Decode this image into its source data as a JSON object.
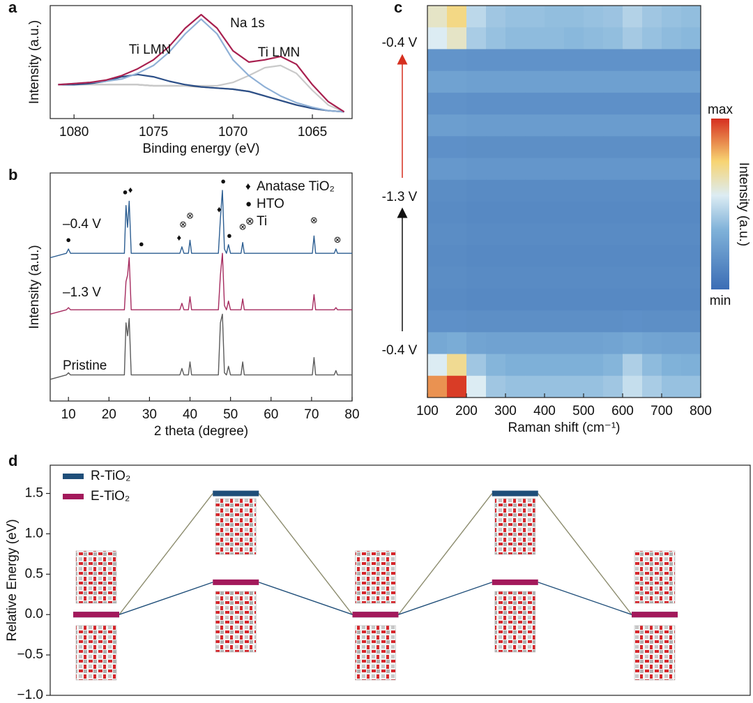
{
  "chart_data": [
    {
      "type": "line",
      "panel_label": "a",
      "xlabel": "Binding energy (eV)",
      "ylabel": "Intensity (a.u.)",
      "annotations": [
        "Na 1s",
        "Ti LMN",
        "Ti LMN"
      ],
      "xlim": [
        1081.5,
        1062.5
      ],
      "xticks": [
        1080,
        1075,
        1070,
        1065
      ],
      "ylim": [
        0,
        1
      ],
      "x": [
        1081,
        1080,
        1079,
        1078,
        1077,
        1076,
        1075,
        1074,
        1073,
        1072,
        1071,
        1070,
        1069,
        1068,
        1067,
        1066,
        1065,
        1064,
        1063
      ],
      "series": [
        {
          "color": "#8a8a8a",
          "values": [
            0.3,
            0.3,
            0.3,
            0.3,
            0.3,
            0.3,
            0.29,
            0.29,
            0.29,
            0.28,
            0.27,
            0.26,
            0.24,
            0.2,
            0.16,
            0.12,
            0.09,
            0.07,
            0.06
          ]
        },
        {
          "color": "#c9c9c9",
          "values": [
            0.3,
            0.3,
            0.3,
            0.3,
            0.3,
            0.3,
            0.29,
            0.29,
            0.29,
            0.29,
            0.29,
            0.32,
            0.38,
            0.45,
            0.47,
            0.4,
            0.25,
            0.12,
            0.06
          ]
        },
        {
          "color": "#2c4f88",
          "values": [
            0.3,
            0.3,
            0.31,
            0.33,
            0.37,
            0.39,
            0.37,
            0.33,
            0.3,
            0.28,
            0.27,
            0.26,
            0.24,
            0.2,
            0.16,
            0.12,
            0.09,
            0.07,
            0.06
          ]
        },
        {
          "color": "#8fb0d6",
          "values": [
            0.3,
            0.31,
            0.32,
            0.33,
            0.35,
            0.4,
            0.47,
            0.59,
            0.75,
            0.88,
            0.75,
            0.52,
            0.38,
            0.28,
            0.2,
            0.14,
            0.1,
            0.07,
            0.06
          ]
        },
        {
          "color": "#a8204f",
          "values": [
            0.3,
            0.31,
            0.32,
            0.34,
            0.38,
            0.44,
            0.52,
            0.64,
            0.8,
            0.92,
            0.8,
            0.6,
            0.5,
            0.52,
            0.55,
            0.48,
            0.3,
            0.15,
            0.06
          ]
        }
      ]
    },
    {
      "type": "line",
      "panel_label": "b",
      "xlabel": "2 theta (degree)",
      "ylabel": "Intensity (a.u.)",
      "xlim": [
        5.5,
        80
      ],
      "xticks": [
        10,
        20,
        30,
        40,
        50,
        60,
        70,
        80
      ],
      "ylim": [
        0,
        1.05
      ],
      "x": [
        5.5,
        9.5,
        10,
        10.5,
        23.8,
        24.2,
        24.6,
        25,
        25.5,
        37.5,
        38,
        38.5,
        39.6,
        40,
        40.4,
        47,
        47.5,
        48,
        48.5,
        49,
        49.5,
        50,
        52.6,
        53,
        53.4,
        70.2,
        70.6,
        71,
        75.6,
        76,
        76.4,
        80
      ],
      "series": [
        {
          "name": "–0.4 V",
          "color": "#2b5d91",
          "values": [
            0.66,
            0.68,
            0.7,
            0.68,
            0.68,
            0.9,
            0.8,
            0.92,
            0.68,
            0.68,
            0.71,
            0.68,
            0.68,
            0.74,
            0.68,
            0.68,
            0.84,
            0.97,
            0.7,
            0.68,
            0.72,
            0.68,
            0.68,
            0.73,
            0.68,
            0.68,
            0.76,
            0.68,
            0.68,
            0.7,
            0.68,
            0.68
          ]
        },
        {
          "name": "–1.3 V",
          "color": "#a52a5e",
          "values": [
            0.4,
            0.42,
            0.43,
            0.42,
            0.42,
            0.55,
            0.58,
            0.66,
            0.42,
            0.42,
            0.45,
            0.42,
            0.42,
            0.48,
            0.42,
            0.42,
            0.58,
            0.68,
            0.44,
            0.42,
            0.46,
            0.42,
            0.42,
            0.47,
            0.42,
            0.42,
            0.49,
            0.42,
            0.42,
            0.43,
            0.42,
            0.42
          ]
        },
        {
          "name": "Pristine",
          "color": "#5a5a5a",
          "values": [
            0.1,
            0.12,
            0.13,
            0.12,
            0.12,
            0.36,
            0.3,
            0.38,
            0.12,
            0.12,
            0.15,
            0.12,
            0.12,
            0.18,
            0.12,
            0.12,
            0.36,
            0.4,
            0.13,
            0.12,
            0.16,
            0.12,
            0.12,
            0.18,
            0.12,
            0.12,
            0.2,
            0.12,
            0.12,
            0.14,
            0.12,
            0.12
          ]
        }
      ],
      "legend": [
        {
          "symbol": "♦",
          "label": "Anatase TiO₂"
        },
        {
          "symbol": "●",
          "label": "HTO"
        },
        {
          "symbol": "⊗",
          "label": "Ti"
        }
      ],
      "peak_markers": [
        {
          "symbol": "●",
          "x": 10,
          "y": 0.74
        },
        {
          "symbol": "●",
          "x": 24,
          "y": 0.96
        },
        {
          "symbol": "♦",
          "x": 25.3,
          "y": 0.97
        },
        {
          "symbol": "●",
          "x": 28,
          "y": 0.72
        },
        {
          "symbol": "♦",
          "x": 37.3,
          "y": 0.75
        },
        {
          "symbol": "⊗",
          "x": 38.3,
          "y": 0.81
        },
        {
          "symbol": "⊗",
          "x": 40,
          "y": 0.85
        },
        {
          "symbol": "♦",
          "x": 47.2,
          "y": 0.88
        },
        {
          "symbol": "●",
          "x": 48.2,
          "y": 1.01
        },
        {
          "symbol": "●",
          "x": 49.7,
          "y": 0.76
        },
        {
          "symbol": "⊗",
          "x": 53,
          "y": 0.8
        },
        {
          "symbol": "⊗",
          "x": 70.6,
          "y": 0.83
        },
        {
          "symbol": "⊗",
          "x": 76.4,
          "y": 0.74
        }
      ]
    },
    {
      "type": "heatmap",
      "panel_label": "c",
      "xlabel": "Raman shift (cm⁻¹)",
      "colorbar_label": "Intensity (a.u.)",
      "colorbar_max": "max",
      "colorbar_min": "min",
      "y_labels": [
        "-0.4 V",
        "-1.3 V",
        "-0.4 V"
      ],
      "xlim": [
        100,
        800
      ],
      "xticks": [
        100,
        200,
        300,
        400,
        500,
        600,
        700,
        800
      ],
      "xbins": [
        100,
        150,
        200,
        250,
        300,
        350,
        400,
        450,
        500,
        550,
        600,
        650,
        700,
        750,
        800
      ],
      "colorscale": [
        [
          0,
          "#3b6db5"
        ],
        [
          0.35,
          "#80b2d9"
        ],
        [
          0.55,
          "#dcecf3"
        ],
        [
          0.75,
          "#f7d472"
        ],
        [
          1,
          "#d62f1f"
        ]
      ],
      "z": [
        [
          0.62,
          0.72,
          0.48,
          0.42,
          0.4,
          0.4,
          0.39,
          0.39,
          0.4,
          0.41,
          0.46,
          0.42,
          0.4,
          0.39
        ],
        [
          0.55,
          0.62,
          0.44,
          0.4,
          0.38,
          0.38,
          0.38,
          0.37,
          0.38,
          0.39,
          0.43,
          0.4,
          0.38,
          0.37
        ],
        [
          0.2,
          0.2,
          0.19,
          0.19,
          0.19,
          0.19,
          0.19,
          0.19,
          0.19,
          0.19,
          0.19,
          0.19,
          0.19,
          0.19
        ],
        [
          0.27,
          0.27,
          0.26,
          0.26,
          0.26,
          0.26,
          0.26,
          0.26,
          0.26,
          0.26,
          0.26,
          0.26,
          0.26,
          0.26
        ],
        [
          0.19,
          0.19,
          0.18,
          0.18,
          0.18,
          0.18,
          0.18,
          0.18,
          0.18,
          0.18,
          0.18,
          0.18,
          0.18,
          0.18
        ],
        [
          0.25,
          0.25,
          0.24,
          0.24,
          0.24,
          0.24,
          0.24,
          0.24,
          0.24,
          0.24,
          0.24,
          0.24,
          0.24,
          0.24
        ],
        [
          0.18,
          0.18,
          0.17,
          0.17,
          0.17,
          0.17,
          0.17,
          0.17,
          0.17,
          0.17,
          0.17,
          0.17,
          0.17,
          0.17
        ],
        [
          0.22,
          0.22,
          0.21,
          0.21,
          0.21,
          0.21,
          0.21,
          0.21,
          0.21,
          0.21,
          0.21,
          0.21,
          0.21,
          0.21
        ],
        [
          0.16,
          0.16,
          0.15,
          0.15,
          0.15,
          0.15,
          0.15,
          0.15,
          0.15,
          0.15,
          0.15,
          0.15,
          0.15,
          0.15
        ],
        [
          0.15,
          0.15,
          0.14,
          0.14,
          0.14,
          0.14,
          0.14,
          0.14,
          0.14,
          0.14,
          0.14,
          0.14,
          0.14,
          0.14
        ],
        [
          0.16,
          0.16,
          0.15,
          0.15,
          0.15,
          0.15,
          0.15,
          0.15,
          0.15,
          0.15,
          0.15,
          0.15,
          0.15,
          0.15
        ],
        [
          0.15,
          0.15,
          0.14,
          0.14,
          0.14,
          0.14,
          0.14,
          0.14,
          0.14,
          0.14,
          0.14,
          0.14,
          0.14,
          0.14
        ],
        [
          0.16,
          0.16,
          0.15,
          0.15,
          0.15,
          0.15,
          0.15,
          0.15,
          0.15,
          0.15,
          0.15,
          0.15,
          0.15,
          0.15
        ],
        [
          0.15,
          0.15,
          0.14,
          0.14,
          0.14,
          0.14,
          0.14,
          0.14,
          0.14,
          0.14,
          0.14,
          0.14,
          0.14,
          0.14
        ],
        [
          0.18,
          0.18,
          0.17,
          0.17,
          0.17,
          0.17,
          0.17,
          0.17,
          0.17,
          0.17,
          0.18,
          0.17,
          0.17,
          0.17
        ],
        [
          0.3,
          0.32,
          0.28,
          0.27,
          0.27,
          0.27,
          0.27,
          0.27,
          0.27,
          0.28,
          0.3,
          0.28,
          0.27,
          0.27
        ],
        [
          0.55,
          0.7,
          0.42,
          0.36,
          0.34,
          0.34,
          0.34,
          0.34,
          0.34,
          0.36,
          0.45,
          0.38,
          0.35,
          0.34
        ],
        [
          0.85,
          0.98,
          0.55,
          0.42,
          0.4,
          0.4,
          0.4,
          0.4,
          0.4,
          0.42,
          0.5,
          0.44,
          0.4,
          0.4
        ]
      ]
    },
    {
      "type": "energy-levels",
      "panel_label": "d",
      "ylabel": "Relative Energy (eV)",
      "ylim": [
        -1,
        1.85
      ],
      "yticks": [
        {
          "value": -1,
          "label": "−1.0"
        },
        {
          "value": -0.5,
          "label": "−0.5"
        },
        {
          "value": 0,
          "label": "0.0"
        },
        0.5,
        {
          "value": 1,
          "label": "1.0"
        },
        1.5
      ],
      "categories": [
        null,
        null,
        null,
        null,
        null
      ],
      "series": [
        {
          "name": "R-TiO₂",
          "color": "#1f4e79",
          "connector_color": "#8c8c6e",
          "values": [
            0,
            1.5,
            0,
            1.5,
            0
          ]
        },
        {
          "name": "E-TiO₂",
          "color": "#a3195b",
          "connector_color": "#1f4e79",
          "values": [
            0,
            0.4,
            0,
            0.4,
            0
          ]
        }
      ]
    }
  ]
}
